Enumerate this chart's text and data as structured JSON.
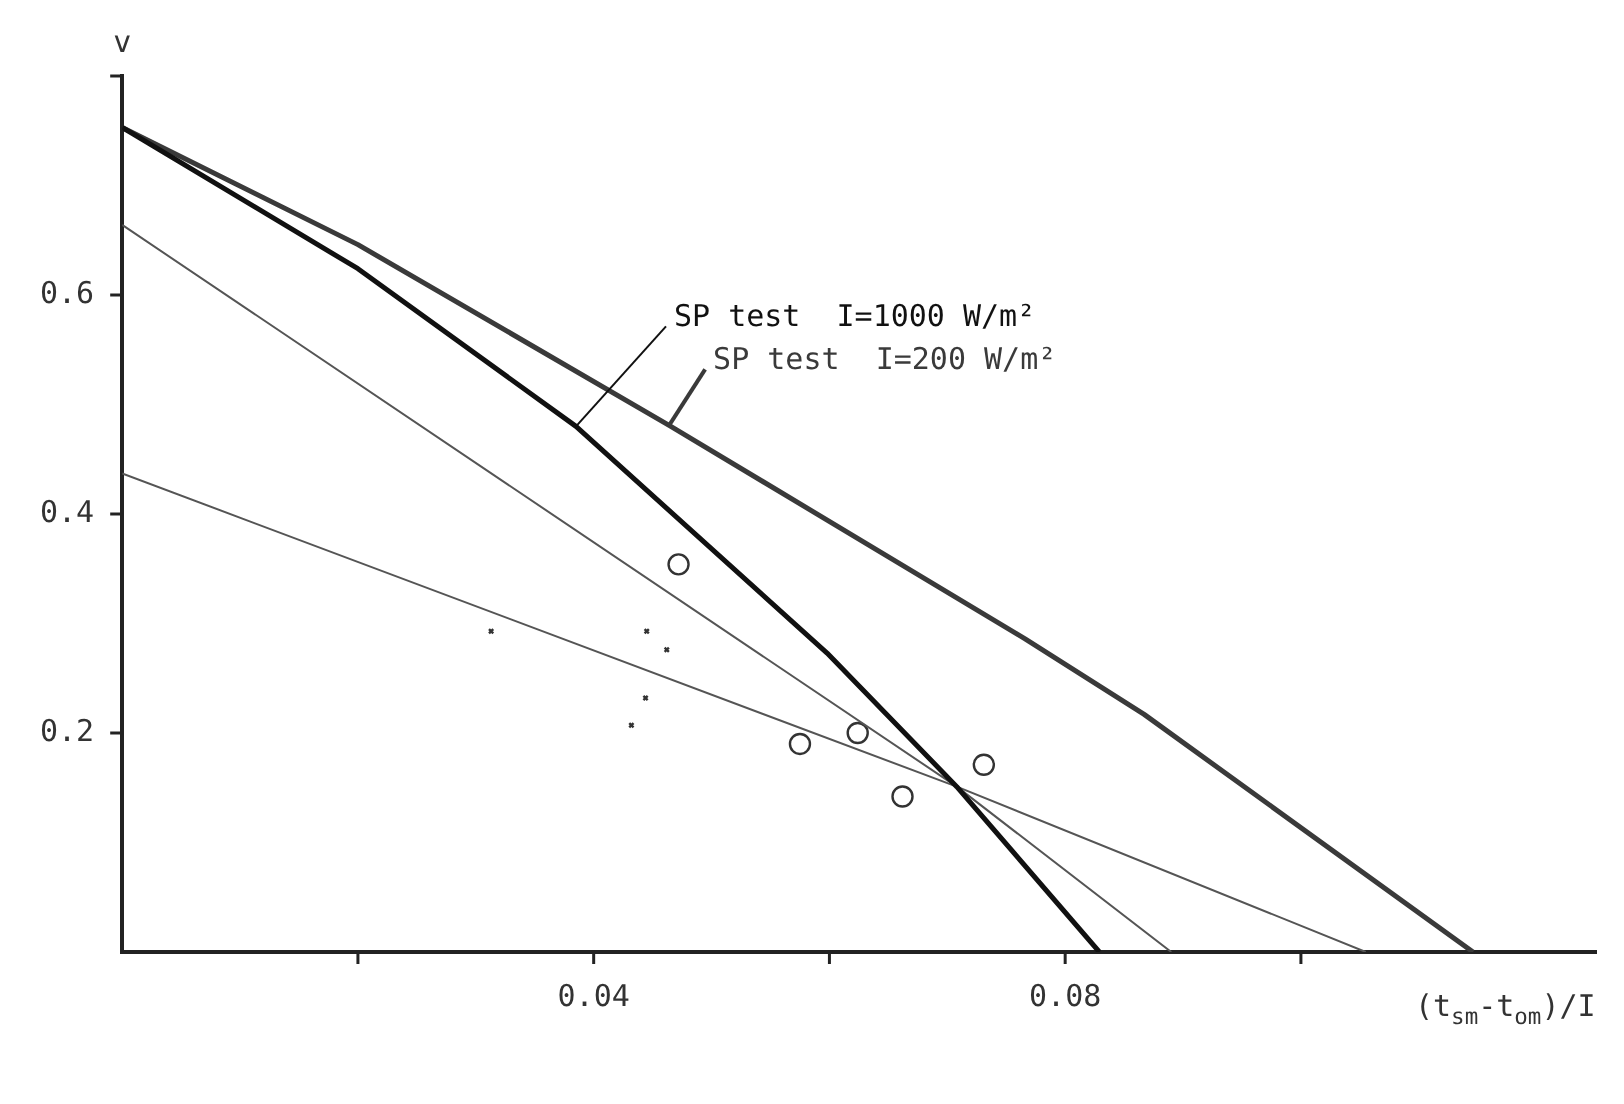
{
  "chart_data": {
    "type": "line",
    "xlabel": "(t$_{sm}$-t$_{om}$)/I",
    "ylabel": "v",
    "xlim": [
      0,
      0.125
    ],
    "ylim": [
      0,
      0.8
    ],
    "xticks": [
      {
        "value": 0.02,
        "label": null
      },
      0.04,
      {
        "value": 0.06,
        "label": null
      },
      0.08,
      {
        "value": 0.1,
        "label": null
      }
    ],
    "yticks": [
      0.2,
      0.4,
      0.6,
      {
        "value": 0.8,
        "label": null
      }
    ],
    "grid": false,
    "legend": false,
    "series": [
      {
        "name": "SP test  I=1000 W/m²",
        "color": "#111111",
        "line_style": "solid",
        "marker": "none",
        "x": [
          0,
          0.02,
          0.0385,
          0.0598,
          0.0708,
          0.0829
        ],
        "values": [
          0.753,
          0.624,
          0.48,
          0.273,
          0.151,
          0
        ]
      },
      {
        "name": "SP test  I=200 W/m²",
        "color": "#3a3a3a",
        "line_style": "solid",
        "marker": "none",
        "x": [
          0,
          0.02,
          0.0464,
          0.0766,
          0.0867,
          0.1146
        ],
        "values": [
          0.753,
          0.646,
          0.481,
          0.286,
          0.217,
          0
        ]
      },
      {
        "color": "#555555",
        "line_style": "solid",
        "marker": "none",
        "x": [
          0,
          0.0708,
          0.089
        ],
        "values": [
          0.664,
          0.151,
          0
        ]
      },
      {
        "color": "#555555",
        "line_style": "solid",
        "marker": "none",
        "x": [
          0,
          0.0708,
          0.1055
        ],
        "values": [
          0.437,
          0.151,
          0
        ]
      },
      {
        "type": "scatter",
        "color": "#333333",
        "marker": "circle",
        "x": [
          0.0472,
          0.0575,
          0.0624,
          0.0662,
          0.0731
        ],
        "values": [
          0.354,
          0.19,
          0.2,
          0.142,
          0.171
        ]
      },
      {
        "type": "scatter",
        "color": "#333333",
        "marker": "cross",
        "x": [
          0.0313,
          0.0445,
          0.0462,
          0.0444,
          0.0432
        ],
        "values": [
          0.293,
          0.293,
          0.276,
          0.232,
          0.207
        ]
      }
    ]
  }
}
